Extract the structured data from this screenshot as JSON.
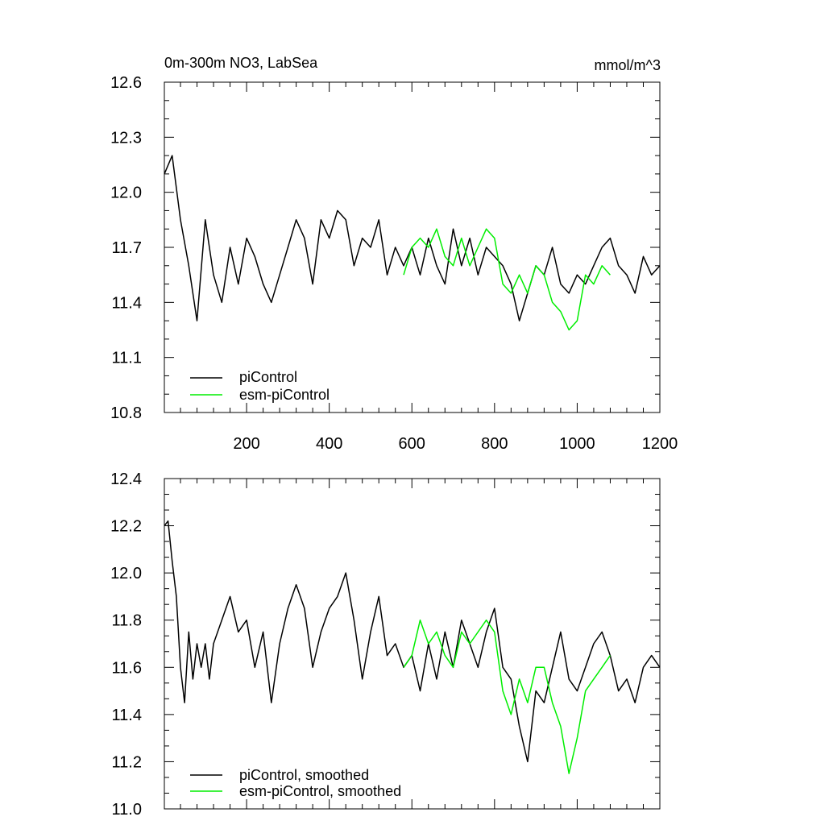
{
  "chart_data": [
    {
      "type": "line",
      "title": "0m-300m NO3, LabSea",
      "units": "mmol/m^3",
      "xlim": [
        1,
        1200
      ],
      "ylim": [
        10.8,
        12.6
      ],
      "xticks": [
        200,
        400,
        600,
        800,
        1000,
        1200
      ],
      "xtick_labels": [
        "200",
        "400",
        "600",
        "800",
        "1000",
        "1200"
      ],
      "yticks": [
        10.8,
        11.1,
        11.4,
        11.7,
        12.0,
        12.3,
        12.6
      ],
      "ytick_labels": [
        "10.8",
        "11.1",
        "11.4",
        "11.7",
        "12.0",
        "12.3",
        "12.6"
      ],
      "grid": false,
      "legend_position": "bottom-left",
      "series": [
        {
          "name": "piControl",
          "color": "#000000",
          "x": [
            1,
            20,
            40,
            60,
            80,
            100,
            120,
            140,
            160,
            180,
            200,
            220,
            240,
            260,
            280,
            300,
            320,
            340,
            360,
            380,
            400,
            420,
            440,
            460,
            480,
            500,
            520,
            540,
            560,
            580,
            600,
            620,
            640,
            660,
            680,
            700,
            720,
            740,
            760,
            780,
            800,
            820,
            840,
            860,
            880,
            900,
            920,
            940,
            960,
            980,
            1000,
            1020,
            1040,
            1060,
            1080,
            1100,
            1120,
            1140,
            1160,
            1180,
            1200
          ],
          "values": [
            12.1,
            12.2,
            11.85,
            11.6,
            11.3,
            11.85,
            11.55,
            11.4,
            11.7,
            11.5,
            11.75,
            11.65,
            11.5,
            11.4,
            11.55,
            11.7,
            11.85,
            11.75,
            11.5,
            11.85,
            11.75,
            11.9,
            11.85,
            11.6,
            11.75,
            11.7,
            11.85,
            11.55,
            11.7,
            11.6,
            11.7,
            11.55,
            11.75,
            11.6,
            11.5,
            11.8,
            11.6,
            11.75,
            11.55,
            11.7,
            11.65,
            11.6,
            11.5,
            11.3,
            11.45,
            11.6,
            11.55,
            11.7,
            11.5,
            11.45,
            11.55,
            11.5,
            11.6,
            11.7,
            11.75,
            11.6,
            11.55,
            11.45,
            11.65,
            11.55,
            11.6
          ]
        },
        {
          "name": "esm-piControl",
          "color": "#00ee00",
          "x": [
            580,
            600,
            620,
            640,
            660,
            680,
            700,
            720,
            740,
            760,
            780,
            800,
            820,
            840,
            860,
            880,
            900,
            920,
            940,
            960,
            980,
            1000,
            1020,
            1040,
            1060,
            1080
          ],
          "values": [
            11.55,
            11.7,
            11.75,
            11.7,
            11.8,
            11.65,
            11.6,
            11.75,
            11.6,
            11.7,
            11.8,
            11.75,
            11.5,
            11.45,
            11.55,
            11.45,
            11.6,
            11.55,
            11.4,
            11.35,
            11.25,
            11.3,
            11.55,
            11.5,
            11.6,
            11.55
          ]
        }
      ]
    },
    {
      "type": "line",
      "xlim": [
        1,
        1200
      ],
      "ylim": [
        11.0,
        12.4
      ],
      "yticks": [
        11.0,
        11.2,
        11.4,
        11.6,
        11.8,
        12.0,
        12.2,
        12.4
      ],
      "ytick_labels": [
        "11.0",
        "11.2",
        "11.4",
        "11.6",
        "11.8",
        "12.0",
        "12.2",
        "12.4"
      ],
      "grid": false,
      "legend_position": "bottom-left",
      "series": [
        {
          "name": "piControl, smoothed",
          "color": "#000000",
          "x": [
            1,
            10,
            20,
            30,
            40,
            50,
            60,
            70,
            80,
            90,
            100,
            110,
            120,
            140,
            160,
            180,
            200,
            220,
            240,
            260,
            280,
            300,
            320,
            340,
            360,
            380,
            400,
            420,
            440,
            460,
            480,
            500,
            520,
            540,
            560,
            580,
            600,
            620,
            640,
            660,
            680,
            700,
            720,
            740,
            760,
            780,
            800,
            820,
            840,
            860,
            880,
            900,
            920,
            940,
            960,
            980,
            1000,
            1020,
            1040,
            1060,
            1080,
            1100,
            1120,
            1140,
            1160,
            1180,
            1200
          ],
          "values": [
            12.2,
            12.22,
            12.05,
            11.9,
            11.6,
            11.45,
            11.75,
            11.55,
            11.7,
            11.6,
            11.7,
            11.55,
            11.7,
            11.8,
            11.9,
            11.75,
            11.8,
            11.6,
            11.75,
            11.45,
            11.7,
            11.85,
            11.95,
            11.85,
            11.6,
            11.75,
            11.85,
            11.9,
            12.0,
            11.8,
            11.55,
            11.75,
            11.9,
            11.65,
            11.7,
            11.6,
            11.65,
            11.5,
            11.7,
            11.55,
            11.75,
            11.6,
            11.8,
            11.7,
            11.6,
            11.75,
            11.85,
            11.6,
            11.55,
            11.35,
            11.2,
            11.5,
            11.45,
            11.6,
            11.75,
            11.55,
            11.5,
            11.6,
            11.7,
            11.75,
            11.65,
            11.5,
            11.55,
            11.45,
            11.6,
            11.65,
            11.6
          ]
        },
        {
          "name": "esm-piControl, smoothed",
          "color": "#00ee00",
          "x": [
            580,
            600,
            620,
            640,
            660,
            680,
            700,
            720,
            740,
            760,
            780,
            800,
            820,
            840,
            860,
            880,
            900,
            920,
            940,
            960,
            980,
            1000,
            1020,
            1040,
            1060,
            1080
          ],
          "values": [
            11.6,
            11.65,
            11.8,
            11.7,
            11.75,
            11.65,
            11.6,
            11.75,
            11.7,
            11.75,
            11.8,
            11.75,
            11.5,
            11.4,
            11.55,
            11.45,
            11.6,
            11.6,
            11.45,
            11.35,
            11.15,
            11.3,
            11.5,
            11.55,
            11.6,
            11.65
          ]
        }
      ]
    }
  ]
}
